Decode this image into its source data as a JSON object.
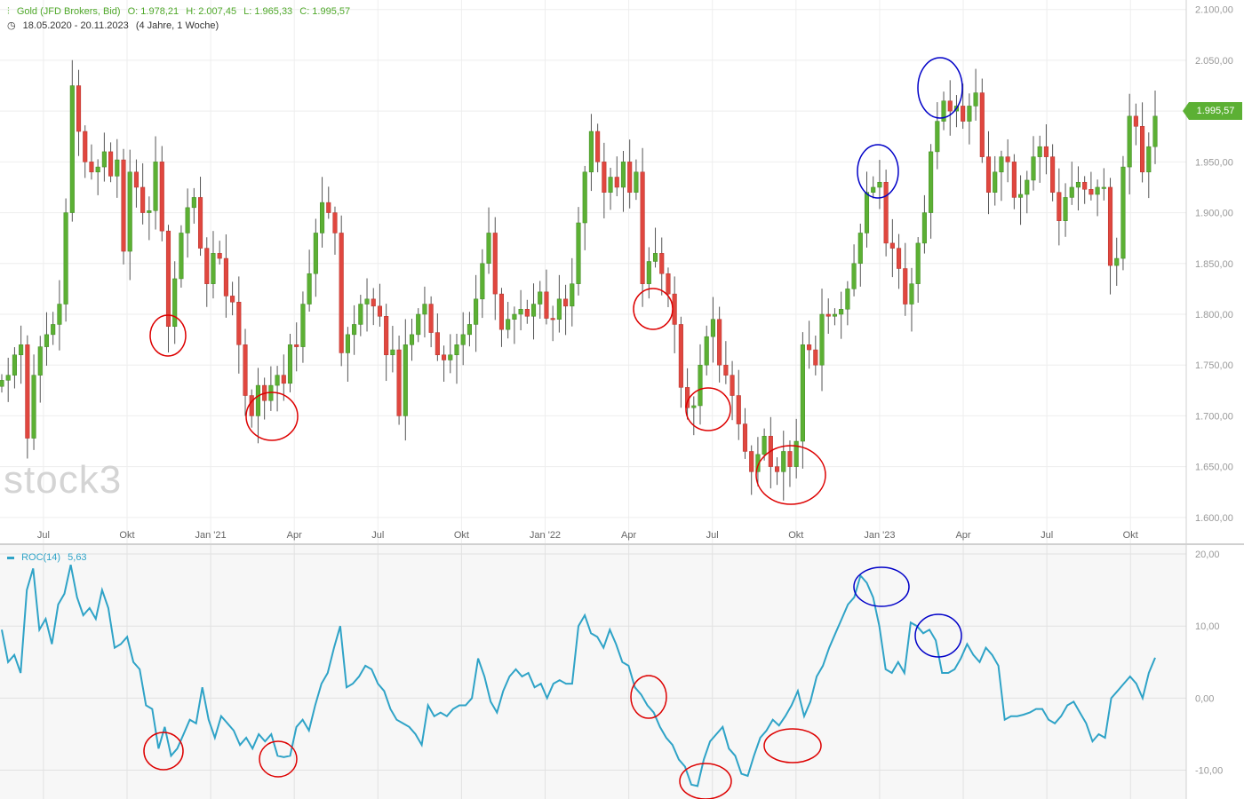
{
  "header": {
    "instrument": "Gold (JFD Brokers, Bid)",
    "open": "O: 1.978,21",
    "high": "H: 2.007,45",
    "low": "L: 1.965,33",
    "close": "C: 1.995,57",
    "range": "18.05.2020 - 20.11.2023",
    "period": "(4 Jahre, 1 Woche)"
  },
  "last_price": "1.995,57",
  "logo": "stock3",
  "roc_legend": {
    "name": "ROC(14)",
    "value": "5,63"
  },
  "colors": {
    "up": "#5cb034",
    "down": "#e0473f",
    "roc_line": "#2fa3c7",
    "red_circle": "#dd0000",
    "blue_circle": "#0000c8"
  },
  "chart_data": [
    {
      "type": "candlestick",
      "title": "Gold (JFD Brokers, Bid)",
      "x_ticks": [
        "Jul",
        "Okt",
        "Jan '21",
        "Apr",
        "Jul",
        "Okt",
        "Jan '22",
        "Apr",
        "Jul",
        "Okt",
        "Jan '23",
        "Apr",
        "Jul",
        "Okt"
      ],
      "y_ticks": [
        "1.600,00",
        "1.650,00",
        "1.700,00",
        "1.750,00",
        "1.800,00",
        "1.850,00",
        "1.900,00",
        "1.950,00",
        "2.000,00",
        "2.050,00",
        "2.100,00"
      ],
      "ylim": [
        1585,
        2105
      ],
      "grid": true,
      "closes": [
        1735,
        1740,
        1760,
        1770,
        1678,
        1740,
        1768,
        1780,
        1790,
        1810,
        1900,
        2025,
        1980,
        1950,
        1940,
        1945,
        1960,
        1936,
        1952,
        1862,
        1940,
        1925,
        1900,
        1902,
        1950,
        1882,
        1788,
        1835,
        1880,
        1905,
        1915,
        1865,
        1830,
        1860,
        1855,
        1818,
        1812,
        1770,
        1720,
        1700,
        1730,
        1715,
        1730,
        1740,
        1732,
        1770,
        1768,
        1810,
        1840,
        1880,
        1910,
        1900,
        1880,
        1762,
        1780,
        1790,
        1810,
        1815,
        1808,
        1798,
        1760,
        1765,
        1700,
        1770,
        1780,
        1800,
        1810,
        1782,
        1760,
        1755,
        1760,
        1770,
        1780,
        1790,
        1815,
        1850,
        1880,
        1820,
        1785,
        1795,
        1800,
        1805,
        1798,
        1810,
        1822,
        1796,
        1795,
        1815,
        1808,
        1830,
        1890,
        1940,
        1980,
        1950,
        1920,
        1935,
        1925,
        1950,
        1920,
        1940,
        1830,
        1852,
        1860,
        1840,
        1820,
        1790,
        1728,
        1708,
        1710,
        1750,
        1778,
        1795,
        1750,
        1740,
        1720,
        1692,
        1665,
        1645,
        1662,
        1680,
        1650,
        1645,
        1665,
        1650,
        1675,
        1770,
        1765,
        1750,
        1800,
        1798,
        1800,
        1805,
        1825,
        1850,
        1880,
        1920,
        1925,
        1930,
        1870,
        1865,
        1845,
        1810,
        1830,
        1870,
        1900,
        1960,
        1990,
        2010,
        2000,
        2005,
        1990,
        2005,
        2018,
        1955,
        1920,
        1940,
        1955,
        1950,
        1915,
        1918,
        1932,
        1955,
        1965,
        1955,
        1920,
        1892,
        1915,
        1925,
        1930,
        1923,
        1918,
        1925,
        1925,
        1848,
        1855,
        1945,
        1995,
        1985,
        1940,
        1965,
        1995
      ]
    },
    {
      "type": "line",
      "title": "ROC(14)",
      "value": "5,63",
      "y_ticks": [
        "-10,00",
        "0,00",
        "10,00",
        "20,00"
      ],
      "ylim": [
        -14,
        20.5
      ],
      "grid": true,
      "x_ticks": [
        "Jul",
        "Okt",
        "Jan '21",
        "Apr",
        "Jul",
        "Okt",
        "Jan '22",
        "Apr",
        "Jul",
        "Okt",
        "Jan '23",
        "Apr",
        "Jul",
        "Okt"
      ],
      "values": [
        9.5,
        5,
        6,
        3.5,
        15,
        18,
        9.5,
        11,
        7.5,
        13,
        14.5,
        18.5,
        14,
        11.5,
        12.5,
        11,
        15,
        12.5,
        7,
        7.5,
        8.5,
        5,
        4,
        -1,
        -1.5,
        -7,
        -4,
        -8,
        -7,
        -5,
        -3,
        -3.5,
        1.5,
        -3,
        -5.5,
        -2.5,
        -3.5,
        -4.5,
        -6.5,
        -5.5,
        -7,
        -5,
        -6,
        -5,
        -8,
        -8.2,
        -8,
        -4,
        -3,
        -4.5,
        -1,
        2,
        3.5,
        7,
        10,
        1.5,
        2,
        3,
        4.5,
        4,
        2,
        1,
        -1.5,
        -3,
        -3.5,
        -4,
        -5,
        -6.5,
        -1,
        -2.5,
        -2,
        -2.5,
        -1.5,
        -1,
        -1,
        0,
        5.5,
        3,
        -0.5,
        -2,
        1,
        3,
        4,
        3,
        3.5,
        1.5,
        2,
        0,
        2,
        2.5,
        2,
        2,
        10,
        11.5,
        9,
        8.5,
        7,
        9.5,
        7.5,
        5,
        4.5,
        1.5,
        0.5,
        -1,
        -2,
        -4,
        -5.5,
        -6.5,
        -8.5,
        -9.5,
        -12,
        -12.2,
        -8.5,
        -6,
        -5,
        -4,
        -7,
        -8,
        -10.5,
        -10.8,
        -8,
        -5.5,
        -4.5,
        -3,
        -3.8,
        -2.5,
        -1,
        1,
        -2.5,
        -0.5,
        3,
        4.5,
        7,
        9,
        11,
        13,
        14,
        17,
        16,
        14,
        10,
        4,
        3.5,
        5,
        3.5,
        10.5,
        10,
        9,
        9.5,
        8,
        3.5,
        3.5,
        4,
        5.5,
        7.5,
        6,
        5,
        7,
        6,
        4.5,
        -3,
        -2.5,
        -2.5,
        -2.3,
        -2,
        -1.5,
        -1.5,
        -3,
        -3.5,
        -2.5,
        -1,
        -0.5,
        -2,
        -3.5,
        -6,
        -5,
        -5.5,
        0,
        1,
        2,
        3,
        2,
        0,
        3.5,
        5.6
      ],
      "annotations": [
        {
          "shape": "ellipse",
          "color": "red",
          "panel": "price",
          "at_x_label": "Nov 2020"
        },
        {
          "shape": "ellipse",
          "color": "red",
          "panel": "price",
          "at_x_label": "Mar 2021"
        },
        {
          "shape": "ellipse",
          "color": "red",
          "panel": "price",
          "at_x_label": "May 2022"
        },
        {
          "shape": "ellipse",
          "color": "red",
          "panel": "price",
          "at_x_label": "Jul 2022"
        },
        {
          "shape": "ellipse",
          "color": "red",
          "panel": "price",
          "at_x_label": "Okt 2022"
        },
        {
          "shape": "ellipse",
          "color": "blue",
          "panel": "price",
          "at_x_label": "Jan 2023"
        },
        {
          "shape": "ellipse",
          "color": "blue",
          "panel": "price",
          "at_x_label": "Apr 2023"
        },
        {
          "shape": "ellipse",
          "color": "red",
          "panel": "roc",
          "at_x_label": "Nov 2020"
        },
        {
          "shape": "ellipse",
          "color": "red",
          "panel": "roc",
          "at_x_label": "Mar 2021"
        },
        {
          "shape": "ellipse",
          "color": "red",
          "panel": "roc",
          "at_x_label": "May 2022"
        },
        {
          "shape": "ellipse",
          "color": "red",
          "panel": "roc",
          "at_x_label": "Jul 2022"
        },
        {
          "shape": "ellipse",
          "color": "red",
          "panel": "roc",
          "at_x_label": "Okt 2022"
        },
        {
          "shape": "ellipse",
          "color": "blue",
          "panel": "roc",
          "at_x_label": "Jan 2023"
        },
        {
          "shape": "ellipse",
          "color": "blue",
          "panel": "roc",
          "at_x_label": "Apr 2023"
        }
      ]
    }
  ]
}
